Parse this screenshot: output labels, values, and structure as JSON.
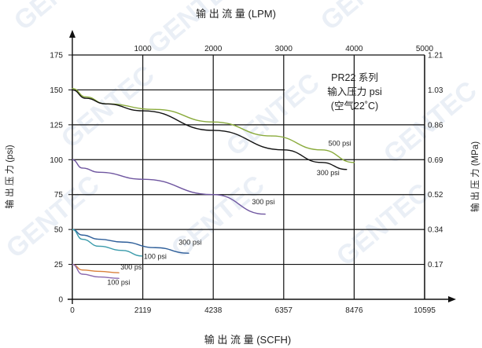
{
  "chart_data": {
    "type": "line",
    "top_axis_label": "输 出 流 量 (LPM)",
    "bottom_axis_label": "输 出 流 量 (SCFH)",
    "left_axis_label": "输 出 压 力 (psi)",
    "right_axis_label": "输 出 压 力 (MPa)",
    "note_lines": [
      "PR22 系列",
      "输入压力 psi",
      "(空气22˚C)"
    ],
    "watermark": "GENTEC",
    "x_bottom_ticks": [
      "0",
      "2119",
      "4238",
      "6357",
      "8476",
      "10595"
    ],
    "x_top_ticks": [
      "1000",
      "2000",
      "3000",
      "4000",
      "5000"
    ],
    "y_left_ticks": [
      "0",
      "25",
      "50",
      "75",
      "100",
      "125",
      "150",
      "175"
    ],
    "y_right_ticks": [
      "0.17",
      "0.34",
      "0.52",
      "0.69",
      "0.86",
      "1.03",
      "1.21"
    ],
    "xlim_scfh": [
      0,
      10595
    ],
    "ylim_psi": [
      0,
      175
    ],
    "series": [
      {
        "name": "500 psi",
        "color": "#8aab3c",
        "x": [
          0,
          400,
          1000,
          2500,
          4238,
          6000,
          7500,
          8476
        ],
        "y": [
          151,
          145,
          140,
          136,
          127,
          117,
          107,
          98
        ]
      },
      {
        "name": "300 psi",
        "color": "#111111",
        "x": [
          0,
          400,
          1000,
          2119,
          4238,
          6357,
          7500,
          8250
        ],
        "y": [
          150,
          144,
          140,
          135,
          121,
          107,
          98,
          93
        ]
      },
      {
        "name": "300 psi",
        "color": "#6f56a0",
        "x": [
          0,
          300,
          800,
          2119,
          4238,
          5800
        ],
        "y": [
          100,
          94,
          91,
          86,
          75,
          61
        ]
      },
      {
        "name": "300 psi",
        "color": "#2f5f9a",
        "x": [
          0,
          300,
          800,
          1500,
          2500,
          3500
        ],
        "y": [
          50,
          46,
          43,
          41,
          37,
          33
        ]
      },
      {
        "name": "100 psi",
        "color": "#3a9bab",
        "x": [
          0,
          300,
          800,
          1500,
          2100
        ],
        "y": [
          50,
          43,
          38,
          35,
          31
        ]
      },
      {
        "name": "300 psi",
        "color": "#d9803a",
        "x": [
          0,
          300,
          800,
          1400
        ],
        "y": [
          25,
          21,
          20,
          19
        ]
      },
      {
        "name": "100 psi",
        "color": "#8a6ab0",
        "x": [
          0,
          300,
          800,
          1400
        ],
        "y": [
          25,
          18,
          16,
          15
        ]
      }
    ],
    "series_labels": [
      {
        "text": "500 psi",
        "x": 7700,
        "y": 110
      },
      {
        "text": "300 psi",
        "x": 7350,
        "y": 89
      },
      {
        "text": "300 psi",
        "x": 5400,
        "y": 68
      },
      {
        "text": "300 psi",
        "x": 3200,
        "y": 39
      },
      {
        "text": "100 psi",
        "x": 2150,
        "y": 29
      },
      {
        "text": "300 psi",
        "x": 1450,
        "y": 21.5
      },
      {
        "text": "100 psi",
        "x": 1050,
        "y": 10.5
      }
    ]
  }
}
